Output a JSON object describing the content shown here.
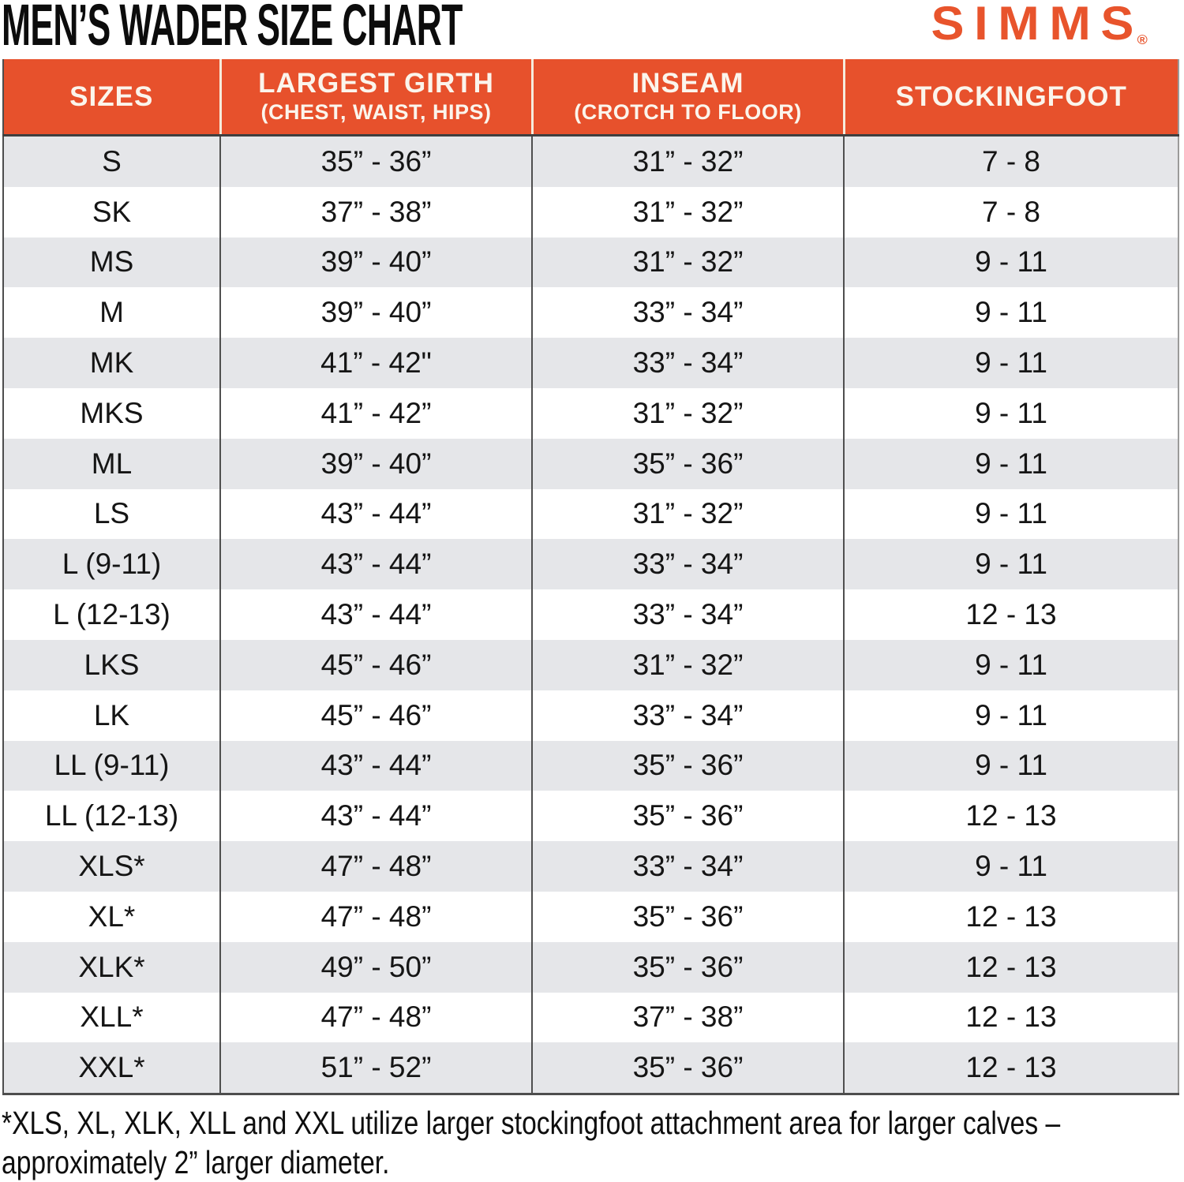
{
  "header": {
    "title": "MEN’S WADER SIZE CHART",
    "brand": "SIMMS",
    "registered_mark": "®"
  },
  "colors": {
    "header_orange": "#E7512C",
    "brand_orange": "#E8542C",
    "row_alt_gray": "#E5E6E9",
    "row_white": "#FFFFFF",
    "grid_dark": "#4D4D4D",
    "header_divider_cream": "#F6ECDC",
    "text_black": "#111111"
  },
  "chart_data": {
    "type": "table",
    "title": "MEN’S WADER SIZE CHART",
    "columns": [
      {
        "label": "SIZES",
        "sublabel": ""
      },
      {
        "label": "LARGEST GIRTH",
        "sublabel": "(CHEST, WAIST, HIPS)"
      },
      {
        "label": "INSEAM",
        "sublabel": "(CROTCH TO FLOOR)"
      },
      {
        "label": "STOCKINGFOOT",
        "sublabel": ""
      }
    ],
    "rows": [
      {
        "size": "S",
        "girth": "35” - 36”",
        "inseam": "31” - 32”",
        "stockingfoot": "7 - 8"
      },
      {
        "size": "SK",
        "girth": "37” - 38”",
        "inseam": "31” - 32”",
        "stockingfoot": "7 - 8"
      },
      {
        "size": "MS",
        "girth": "39” - 40”",
        "inseam": "31” - 32”",
        "stockingfoot": "9 - 11"
      },
      {
        "size": "M",
        "girth": "39” - 40”",
        "inseam": "33” - 34”",
        "stockingfoot": "9 - 11"
      },
      {
        "size": "MK",
        "girth": "41” - 42\"",
        "inseam": "33” - 34”",
        "stockingfoot": "9 - 11"
      },
      {
        "size": "MKS",
        "girth": "41” - 42”",
        "inseam": "31” - 32”",
        "stockingfoot": "9 - 11"
      },
      {
        "size": "ML",
        "girth": "39” - 40”",
        "inseam": "35” - 36”",
        "stockingfoot": "9 - 11"
      },
      {
        "size": "LS",
        "girth": "43” - 44”",
        "inseam": "31” - 32”",
        "stockingfoot": "9 - 11"
      },
      {
        "size": "L (9-11)",
        "girth": "43” - 44”",
        "inseam": "33” - 34”",
        "stockingfoot": "9 - 11"
      },
      {
        "size": "L (12-13)",
        "girth": "43” - 44”",
        "inseam": "33” - 34”",
        "stockingfoot": "12 - 13"
      },
      {
        "size": "LKS",
        "girth": "45” - 46”",
        "inseam": "31” - 32”",
        "stockingfoot": "9 - 11"
      },
      {
        "size": "LK",
        "girth": "45” - 46”",
        "inseam": "33” - 34”",
        "stockingfoot": "9 - 11"
      },
      {
        "size": "LL (9-11)",
        "girth": "43” - 44”",
        "inseam": "35” - 36”",
        "stockingfoot": "9 - 11"
      },
      {
        "size": "LL (12-13)",
        "girth": "43” - 44”",
        "inseam": "35” - 36”",
        "stockingfoot": "12 - 13"
      },
      {
        "size": "XLS*",
        "girth": "47” - 48”",
        "inseam": "33” - 34”",
        "stockingfoot": "9 - 11"
      },
      {
        "size": "XL*",
        "girth": "47” - 48”",
        "inseam": "35” - 36”",
        "stockingfoot": "12 - 13"
      },
      {
        "size": "XLK*",
        "girth": "49” - 50”",
        "inseam": "35” - 36”",
        "stockingfoot": "12 - 13"
      },
      {
        "size": "XLL*",
        "girth": "47” - 48”",
        "inseam": "37” - 38”",
        "stockingfoot": "12 - 13"
      },
      {
        "size": "XXL*",
        "girth": "51” - 52”",
        "inseam": "35” - 36”",
        "stockingfoot": "12 - 13"
      }
    ]
  },
  "footnote": {
    "lines": [
      "*XLS, XL, XLK, XLL and XXL utilize larger stockingfoot attachment area for larger calves –",
      "approximately 2” larger diameter."
    ]
  }
}
